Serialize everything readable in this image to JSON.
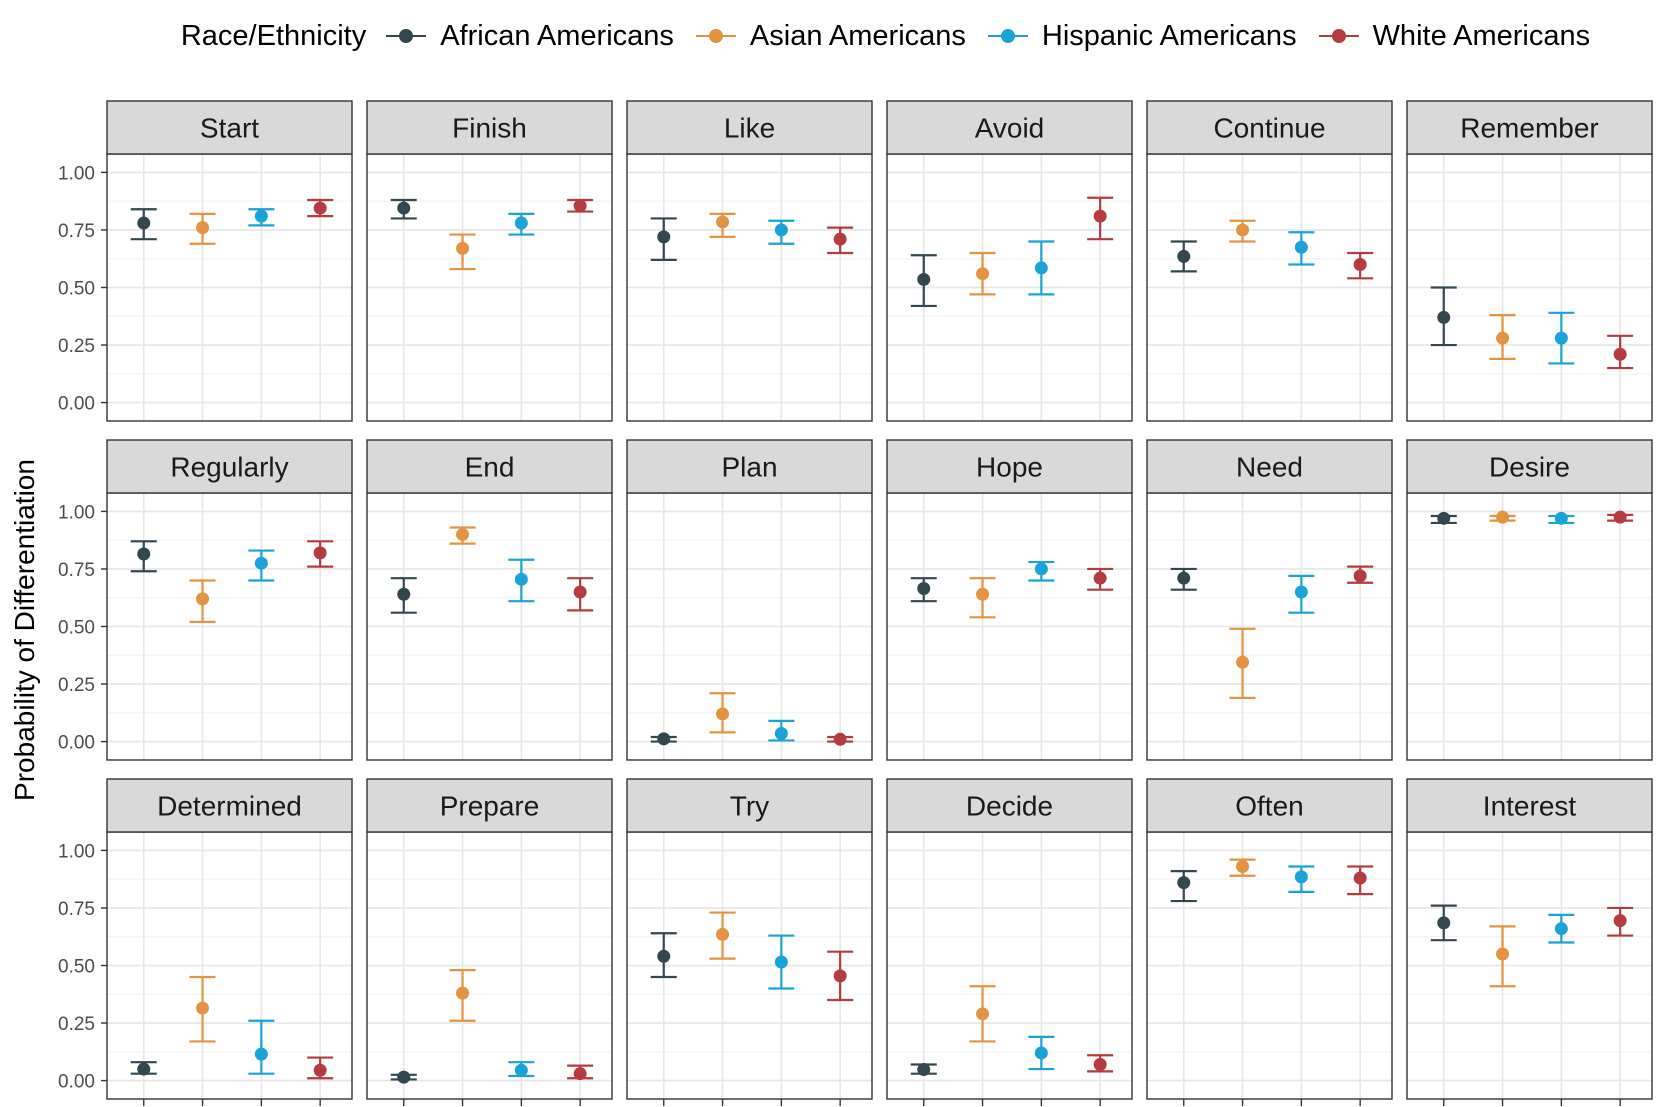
{
  "chart_data": {
    "type": "scatter",
    "subtype": "point-range faceted",
    "ylabel": "Probability of Differentiation",
    "xlabel": "",
    "ylim": [
      0,
      1
    ],
    "yticks": [
      "0.00",
      "0.25",
      "0.50",
      "0.75",
      "1.00"
    ],
    "grid": true,
    "legend": {
      "title": "Race/Ethnicity",
      "position": "top"
    },
    "series": [
      {
        "name": "African Americans",
        "color": "#33474f"
      },
      {
        "name": "Asian Americans",
        "color": "#e39342"
      },
      {
        "name": "Hispanic Americans",
        "color": "#1aa3d6"
      },
      {
        "name": "White Americans",
        "color": "#b63b3e"
      }
    ],
    "facets": [
      {
        "label": "Start",
        "points": [
          [
            0.78,
            0.71,
            0.84
          ],
          [
            0.76,
            0.69,
            0.82
          ],
          [
            0.81,
            0.77,
            0.84
          ],
          [
            0.845,
            0.81,
            0.88
          ]
        ]
      },
      {
        "label": "Finish",
        "points": [
          [
            0.845,
            0.8,
            0.88
          ],
          [
            0.67,
            0.58,
            0.73
          ],
          [
            0.78,
            0.73,
            0.82
          ],
          [
            0.855,
            0.83,
            0.88
          ]
        ]
      },
      {
        "label": "Like",
        "points": [
          [
            0.72,
            0.62,
            0.8
          ],
          [
            0.785,
            0.72,
            0.82
          ],
          [
            0.75,
            0.69,
            0.79
          ],
          [
            0.71,
            0.65,
            0.76
          ]
        ]
      },
      {
        "label": "Avoid",
        "points": [
          [
            0.535,
            0.42,
            0.64
          ],
          [
            0.56,
            0.47,
            0.65
          ],
          [
            0.585,
            0.47,
            0.7
          ],
          [
            0.81,
            0.71,
            0.89
          ]
        ]
      },
      {
        "label": "Continue",
        "points": [
          [
            0.635,
            0.57,
            0.7
          ],
          [
            0.75,
            0.7,
            0.79
          ],
          [
            0.675,
            0.6,
            0.74
          ],
          [
            0.6,
            0.54,
            0.65
          ]
        ]
      },
      {
        "label": "Remember",
        "points": [
          [
            0.37,
            0.25,
            0.5
          ],
          [
            0.28,
            0.19,
            0.38
          ],
          [
            0.28,
            0.17,
            0.39
          ],
          [
            0.21,
            0.15,
            0.29
          ]
        ]
      },
      {
        "label": "Regularly",
        "points": [
          [
            0.815,
            0.74,
            0.87
          ],
          [
            0.62,
            0.52,
            0.7
          ],
          [
            0.775,
            0.7,
            0.83
          ],
          [
            0.82,
            0.76,
            0.87
          ]
        ]
      },
      {
        "label": "End",
        "points": [
          [
            0.64,
            0.56,
            0.71
          ],
          [
            0.9,
            0.86,
            0.93
          ],
          [
            0.705,
            0.61,
            0.79
          ],
          [
            0.65,
            0.57,
            0.71
          ]
        ]
      },
      {
        "label": "Plan",
        "points": [
          [
            0.012,
            0.0,
            0.02
          ],
          [
            0.12,
            0.04,
            0.21
          ],
          [
            0.035,
            0.005,
            0.09
          ],
          [
            0.01,
            0.0,
            0.02
          ]
        ]
      },
      {
        "label": "Hope",
        "points": [
          [
            0.665,
            0.61,
            0.71
          ],
          [
            0.64,
            0.54,
            0.71
          ],
          [
            0.75,
            0.7,
            0.78
          ],
          [
            0.71,
            0.66,
            0.75
          ]
        ]
      },
      {
        "label": "Need",
        "points": [
          [
            0.71,
            0.66,
            0.75
          ],
          [
            0.345,
            0.19,
            0.49
          ],
          [
            0.65,
            0.56,
            0.72
          ],
          [
            0.72,
            0.69,
            0.76
          ]
        ]
      },
      {
        "label": "Desire",
        "points": [
          [
            0.97,
            0.95,
            0.98
          ],
          [
            0.975,
            0.96,
            0.98
          ],
          [
            0.97,
            0.95,
            0.98
          ],
          [
            0.975,
            0.96,
            0.985
          ]
        ]
      },
      {
        "label": "Determined",
        "points": [
          [
            0.05,
            0.03,
            0.08
          ],
          [
            0.315,
            0.17,
            0.45
          ],
          [
            0.115,
            0.03,
            0.26
          ],
          [
            0.045,
            0.01,
            0.1
          ]
        ]
      },
      {
        "label": "Prepare",
        "points": [
          [
            0.015,
            0.005,
            0.025
          ],
          [
            0.38,
            0.26,
            0.48
          ],
          [
            0.045,
            0.02,
            0.08
          ],
          [
            0.03,
            0.01,
            0.065
          ]
        ]
      },
      {
        "label": "Try",
        "points": [
          [
            0.54,
            0.45,
            0.64
          ],
          [
            0.635,
            0.53,
            0.73
          ],
          [
            0.515,
            0.4,
            0.63
          ],
          [
            0.455,
            0.35,
            0.56
          ]
        ]
      },
      {
        "label": "Decide",
        "points": [
          [
            0.048,
            0.03,
            0.07
          ],
          [
            0.29,
            0.17,
            0.41
          ],
          [
            0.12,
            0.05,
            0.19
          ],
          [
            0.07,
            0.04,
            0.11
          ]
        ]
      },
      {
        "label": "Often",
        "points": [
          [
            0.86,
            0.78,
            0.91
          ],
          [
            0.93,
            0.89,
            0.96
          ],
          [
            0.885,
            0.82,
            0.93
          ],
          [
            0.88,
            0.81,
            0.93
          ]
        ]
      },
      {
        "label": "Interest",
        "points": [
          [
            0.685,
            0.61,
            0.76
          ],
          [
            0.55,
            0.41,
            0.67
          ],
          [
            0.66,
            0.6,
            0.72
          ],
          [
            0.695,
            0.63,
            0.75
          ]
        ]
      }
    ]
  }
}
